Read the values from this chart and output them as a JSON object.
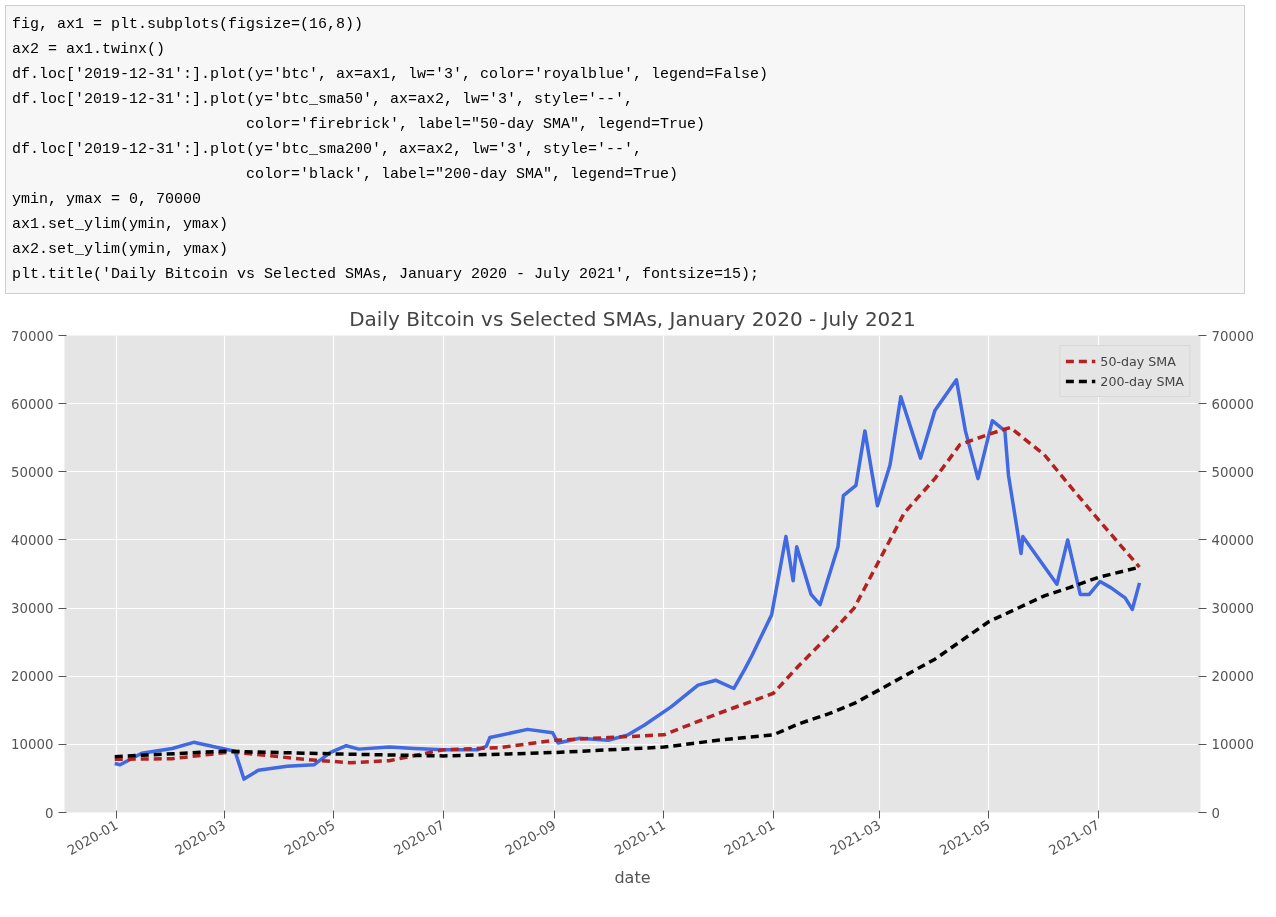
{
  "chart_data": {
    "type": "line",
    "title": "Daily Bitcoin vs Selected SMAs, January 2020 - July 2021",
    "xlabel": "date",
    "annotations": [
      "fig, ax1 = plt.subplots(figsize=(16,8))",
      "ax2 = ax1.twinx()",
      "df.loc['2019-12-31':].plot(y='btc', ax=ax1, lw='3', color='royalblue', legend=False)",
      "df.loc['2019-12-31':].plot(y='btc_sma50', ax=ax2, lw='3', style='--',",
      "                          color='firebrick', label=\"50-day SMA\", legend=True)",
      "df.loc['2019-12-31':].plot(y='btc_sma200', ax=ax2, lw='3', style='--',",
      "                          color='black', label=\"200-day SMA\", legend=True)",
      "ymin, ymax = 0, 70000",
      "ax1.set_ylim(ymin, ymax)",
      "ax2.set_ylim(ymin, ymax)",
      "plt.title('Daily Bitcoin vs Selected SMAs, January 2020 - July 2021', fontsize=15);"
    ],
    "xlim": [
      "2019-12-03",
      "2021-08-27"
    ],
    "xticks": [
      {
        "value": "2020-01",
        "label": "2020-01"
      },
      {
        "value": "2020-03",
        "label": "2020-03"
      },
      {
        "value": "2020-05",
        "label": "2020-05"
      },
      {
        "value": "2020-07",
        "label": "2020-07"
      },
      {
        "value": "2020-09",
        "label": "2020-09"
      },
      {
        "value": "2020-11",
        "label": "2020-11"
      },
      {
        "value": "2021-01",
        "label": "2021-01"
      },
      {
        "value": "2021-03",
        "label": "2021-03"
      },
      {
        "value": "2021-05",
        "label": "2021-05"
      },
      {
        "value": "2021-07",
        "label": "2021-07"
      }
    ],
    "ylim": [
      0,
      70000
    ],
    "yticks": [
      0,
      10000,
      20000,
      30000,
      40000,
      50000,
      60000,
      70000
    ],
    "y2lim": [
      0,
      70000
    ],
    "y2ticks": [
      0,
      10000,
      20000,
      30000,
      40000,
      50000,
      60000,
      70000
    ],
    "grid": true,
    "legend": "top right",
    "series": [
      {
        "color": "#4169e1",
        "line_style": "solid",
        "x": [
          "2019-12-31",
          "2020-01-03",
          "2020-01-15",
          "2020-02-01",
          "2020-02-13",
          "2020-02-25",
          "2020-03-07",
          "2020-03-12",
          "2020-03-20",
          "2020-04-05",
          "2020-04-20",
          "2020-04-29",
          "2020-05-08",
          "2020-05-15",
          "2020-06-01",
          "2020-06-15",
          "2020-07-01",
          "2020-07-20",
          "2020-07-25",
          "2020-07-27",
          "2020-08-17",
          "2020-08-31",
          "2020-09-03",
          "2020-09-15",
          "2020-10-01",
          "2020-10-12",
          "2020-10-21",
          "2020-11-05",
          "2020-11-20",
          "2020-11-30",
          "2020-12-10",
          "2020-12-16",
          "2020-12-20",
          "2020-12-31",
          "2021-01-08",
          "2021-01-12",
          "2021-01-14",
          "2021-01-22",
          "2021-01-27",
          "2021-02-06",
          "2021-02-09",
          "2021-02-16",
          "2021-02-21",
          "2021-02-28",
          "2021-03-07",
          "2021-03-13",
          "2021-03-24",
          "2021-04-01",
          "2021-04-13",
          "2021-04-18",
          "2021-04-25",
          "2021-05-03",
          "2021-05-10",
          "2021-05-12",
          "2021-05-19",
          "2021-05-20",
          "2021-06-08",
          "2021-06-14",
          "2021-06-21",
          "2021-06-26",
          "2021-07-02",
          "2021-07-08",
          "2021-07-16",
          "2021-07-20",
          "2021-07-24"
        ],
        "values": [
          7200,
          7000,
          8700,
          9400,
          10300,
          9600,
          9000,
          4900,
          6200,
          6800,
          7000,
          8800,
          9800,
          9300,
          9600,
          9400,
          9200,
          9200,
          9700,
          11000,
          12200,
          11700,
          10200,
          10900,
          10600,
          11400,
          12800,
          15500,
          18700,
          19400,
          18200,
          21000,
          23000,
          29000,
          40500,
          34000,
          39000,
          32000,
          30500,
          39000,
          46500,
          48000,
          56000,
          45000,
          51000,
          61000,
          52000,
          59000,
          63500,
          56000,
          49000,
          57500,
          56000,
          49500,
          38000,
          40500,
          33500,
          40000,
          32000,
          32000,
          33900,
          33000,
          31500,
          29800,
          33700
        ]
      },
      {
        "name": "50-day SMA",
        "color": "#b22222",
        "line_style": "dashed",
        "x": [
          "2019-12-31",
          "2020-02-01",
          "2020-03-05",
          "2020-04-15",
          "2020-05-10",
          "2020-06-01",
          "2020-07-01",
          "2020-08-01",
          "2020-09-01",
          "2020-10-01",
          "2020-11-01",
          "2020-12-01",
          "2021-01-01",
          "2021-01-15",
          "2021-02-01",
          "2021-02-15",
          "2021-03-01",
          "2021-03-15",
          "2021-04-01",
          "2021-04-15",
          "2021-05-01",
          "2021-05-13",
          "2021-06-01",
          "2021-06-15",
          "2021-07-01",
          "2021-07-24"
        ],
        "values": [
          7800,
          7900,
          8900,
          7800,
          7300,
          7600,
          9200,
          9500,
          10600,
          11000,
          11400,
          14500,
          17500,
          21500,
          26000,
          30000,
          37000,
          44000,
          49000,
          54000,
          55500,
          56500,
          52500,
          48000,
          43000,
          36000
        ]
      },
      {
        "name": "200-day SMA",
        "color": "#000000",
        "line_style": "dashed",
        "x": [
          "2019-12-31",
          "2020-03-01",
          "2020-05-01",
          "2020-07-01",
          "2020-09-01",
          "2020-11-01",
          "2020-12-01",
          "2021-01-01",
          "2021-01-15",
          "2021-02-01",
          "2021-02-15",
          "2021-03-01",
          "2021-04-01",
          "2021-05-01",
          "2021-06-01",
          "2021-06-15",
          "2021-07-01",
          "2021-07-24"
        ],
        "values": [
          8200,
          9000,
          8600,
          8300,
          8800,
          9600,
          10600,
          11400,
          13000,
          14500,
          16000,
          18000,
          22500,
          28000,
          31800,
          33000,
          34500,
          36000
        ]
      }
    ]
  }
}
